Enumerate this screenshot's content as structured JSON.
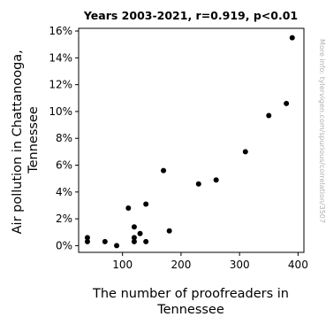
{
  "chart_data": {
    "type": "scatter",
    "title": "Years 2003-2021, r=0.919, p<0.01",
    "xlabel": [
      "The number of proofreaders in",
      "Tennessee"
    ],
    "ylabel": [
      "Air pollution in Chattanooga,",
      "Tennessee"
    ],
    "xlim": [
      25,
      410
    ],
    "ylim": [
      -0.5,
      16.2
    ],
    "x_ticks": [
      100,
      200,
      300,
      400
    ],
    "y_ticks": [
      0,
      2,
      4,
      6,
      8,
      10,
      12,
      14,
      16
    ],
    "y_tick_suffix": "%",
    "grid": false,
    "watermark": "More info: tylervigen.com/spurious/correlation/3507",
    "points": [
      {
        "x": 40,
        "y": 0.3
      },
      {
        "x": 40,
        "y": 0.6
      },
      {
        "x": 70,
        "y": 0.3
      },
      {
        "x": 90,
        "y": 0.0
      },
      {
        "x": 110,
        "y": 2.8
      },
      {
        "x": 120,
        "y": 1.4
      },
      {
        "x": 120,
        "y": 0.6
      },
      {
        "x": 120,
        "y": 0.3
      },
      {
        "x": 130,
        "y": 0.9
      },
      {
        "x": 140,
        "y": 3.1
      },
      {
        "x": 140,
        "y": 0.3
      },
      {
        "x": 170,
        "y": 5.6
      },
      {
        "x": 180,
        "y": 1.1
      },
      {
        "x": 230,
        "y": 4.6
      },
      {
        "x": 260,
        "y": 4.9
      },
      {
        "x": 310,
        "y": 7.0
      },
      {
        "x": 350,
        "y": 9.7
      },
      {
        "x": 380,
        "y": 10.6
      },
      {
        "x": 390,
        "y": 15.5
      }
    ],
    "marker_color": "#000000"
  }
}
